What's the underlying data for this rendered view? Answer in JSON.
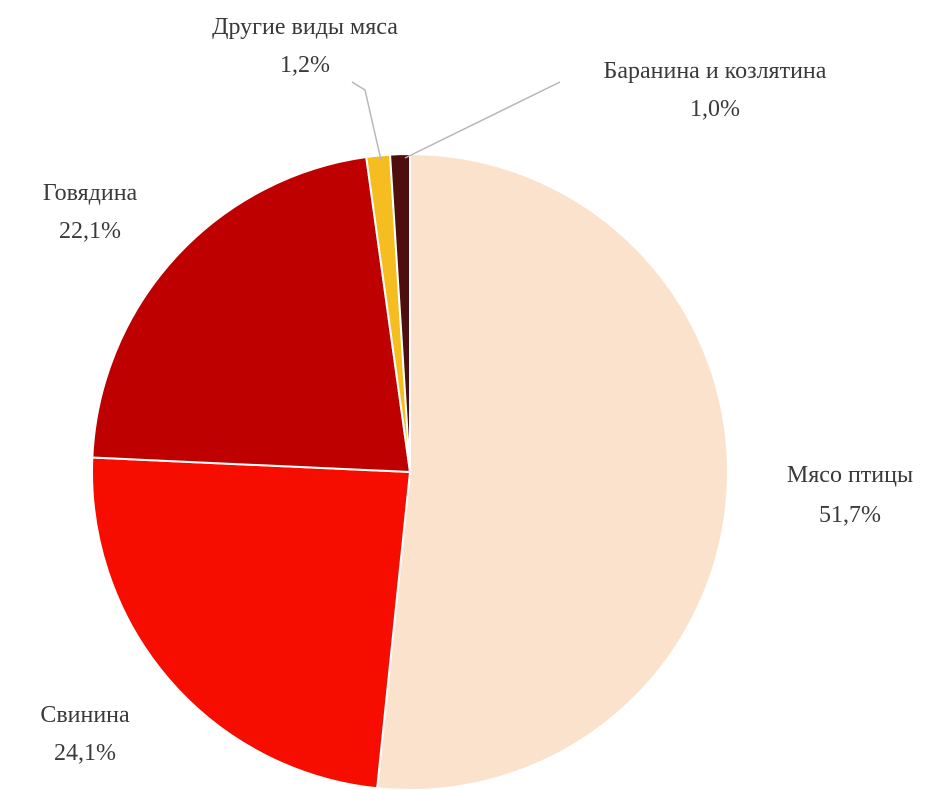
{
  "chart_data": {
    "type": "pie",
    "title": "",
    "slices": [
      {
        "name": "Мясо птицы",
        "value": 51.7,
        "label": "51,7%",
        "color": "#FBE2CC"
      },
      {
        "name": "Свинина",
        "value": 24.1,
        "label": "24,1%",
        "color": "#F70C00"
      },
      {
        "name": "Говядина",
        "value": 22.1,
        "label": "22,1%",
        "color": "#BE0000"
      },
      {
        "name": "Другие виды мяса",
        "value": 1.2,
        "label": "1,2%",
        "color": "#F5BD1F"
      },
      {
        "name": "Баранина и козлятина",
        "value": 1.0,
        "label": "1,0%",
        "color": "#4E0E0E"
      }
    ],
    "start_angle": "12 o'clock",
    "direction": "clockwise",
    "legend": "none",
    "data_labels": "category name and percentage"
  }
}
